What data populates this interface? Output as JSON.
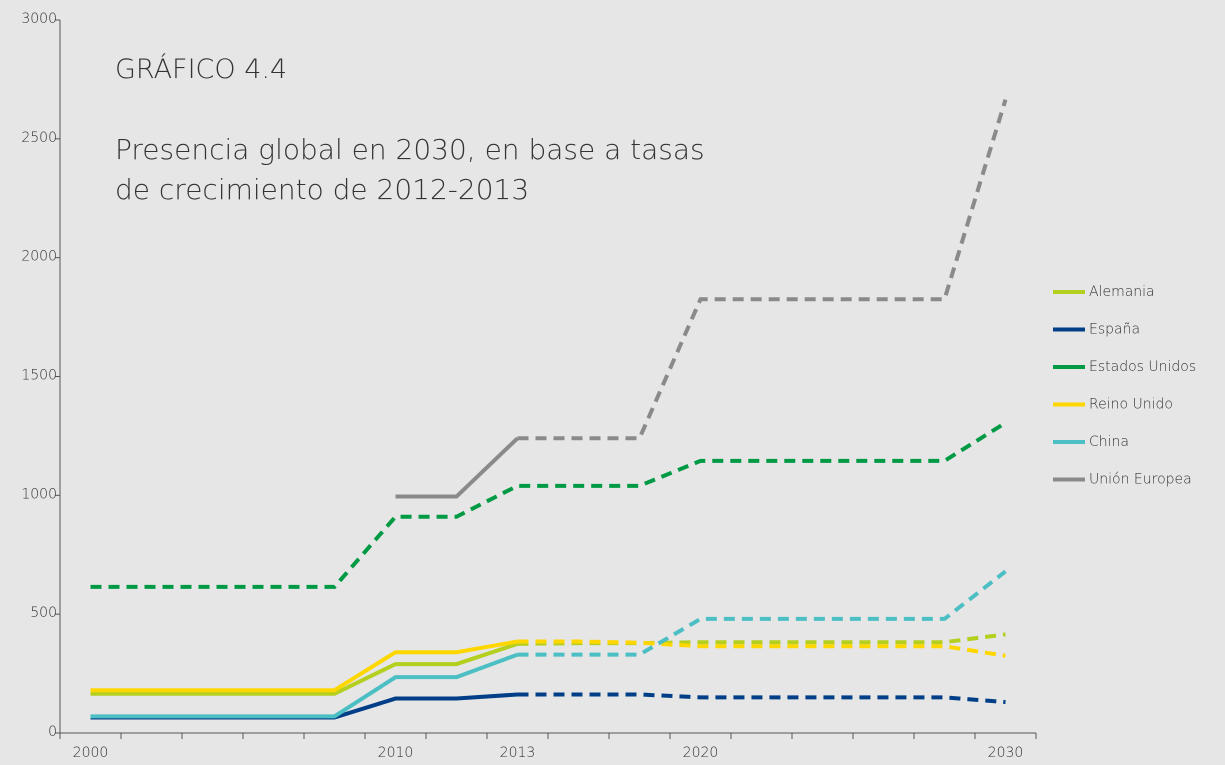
{
  "chart_data": {
    "type": "line",
    "title": "GRÁFICO 4.4",
    "subtitle": "Presencia global en 2030, en base a tasas de crecimiento de 2012-2013",
    "categories": [
      "2000",
      null,
      null,
      null,
      null,
      "2010",
      null,
      "2013",
      null,
      null,
      "2020",
      null,
      null,
      null,
      null,
      "2030"
    ],
    "ylim": [
      0,
      3000
    ],
    "yticks": [
      0,
      500,
      1000,
      1500,
      2000,
      2500,
      3000
    ],
    "legend": "right",
    "series": [
      {
        "name": "Alemania",
        "color": "#b5cf1e",
        "projection_start": 7,
        "values": [
          165,
          165,
          165,
          165,
          165,
          290,
          290,
          375,
          378,
          378,
          382,
          382,
          382,
          382,
          382,
          415
        ]
      },
      {
        "name": "España",
        "color": "#003f87",
        "projection_start": 7,
        "values": [
          65,
          65,
          65,
          65,
          65,
          145,
          145,
          162,
          162,
          162,
          150,
          150,
          150,
          150,
          150,
          130
        ]
      },
      {
        "name": "Estados Unidos",
        "color": "#009a44",
        "projection_start": 0,
        "values": [
          615,
          615,
          615,
          615,
          615,
          910,
          910,
          1040,
          1040,
          1040,
          1145,
          1145,
          1145,
          1145,
          1145,
          1305
        ]
      },
      {
        "name": "Reino Unido",
        "color": "#ffd700",
        "projection_start": 7,
        "values": [
          180,
          180,
          180,
          180,
          180,
          340,
          340,
          385,
          385,
          380,
          365,
          365,
          365,
          365,
          365,
          325
        ]
      },
      {
        "name": "China",
        "color": "#4bbfc3",
        "projection_start": 7,
        "values": [
          70,
          70,
          70,
          70,
          70,
          235,
          235,
          330,
          330,
          330,
          480,
          480,
          480,
          480,
          480,
          680
        ]
      },
      {
        "name": "Unión Europea",
        "color": "#8a8a8a",
        "projection_start": 7,
        "values": [
          null,
          null,
          null,
          null,
          null,
          995,
          995,
          1240,
          1240,
          1240,
          1825,
          1825,
          1825,
          1825,
          1825,
          2665
        ]
      }
    ]
  }
}
